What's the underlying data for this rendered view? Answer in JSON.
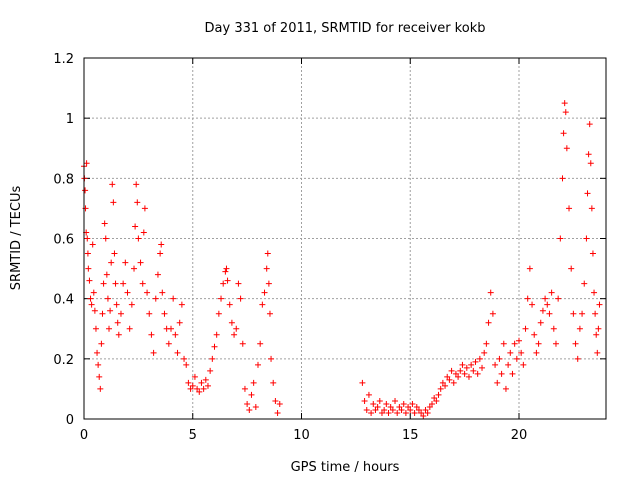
{
  "chart_data": {
    "type": "scatter",
    "title": "Day 331 of 2011, SRMTID for receiver kokb",
    "xlabel": "GPS time / hours",
    "ylabel": "SRMTID / TECUs",
    "xlim": [
      0,
      24
    ],
    "ylim": [
      0,
      1.2
    ],
    "x_ticks": [
      0,
      5,
      10,
      15,
      20
    ],
    "x_tick_labels": [
      "0",
      "5",
      "10",
      "15",
      "20"
    ],
    "y_ticks": [
      0,
      0.2,
      0.4,
      0.6,
      0.8,
      1.0,
      1.2
    ],
    "y_tick_labels": [
      "0",
      "0.2",
      "0.4",
      "0.6",
      "0.8",
      "1",
      "1.2"
    ],
    "grid": true,
    "marker": "+",
    "marker_color": "#ff0000",
    "series": [
      {
        "name": "SRMTID",
        "points": [
          [
            0.0,
            0.84
          ],
          [
            0.02,
            0.8
          ],
          [
            0.05,
            0.76
          ],
          [
            0.07,
            0.7
          ],
          [
            0.1,
            0.62
          ],
          [
            0.12,
            0.85
          ],
          [
            0.15,
            0.6
          ],
          [
            0.18,
            0.55
          ],
          [
            0.2,
            0.5
          ],
          [
            0.25,
            0.46
          ],
          [
            0.3,
            0.4
          ],
          [
            0.35,
            0.38
          ],
          [
            0.4,
            0.58
          ],
          [
            0.45,
            0.42
          ],
          [
            0.5,
            0.36
          ],
          [
            0.55,
            0.3
          ],
          [
            0.6,
            0.22
          ],
          [
            0.65,
            0.18
          ],
          [
            0.7,
            0.14
          ],
          [
            0.75,
            0.1
          ],
          [
            0.8,
            0.25
          ],
          [
            0.85,
            0.35
          ],
          [
            0.9,
            0.45
          ],
          [
            0.95,
            0.65
          ],
          [
            1.0,
            0.6
          ],
          [
            1.05,
            0.48
          ],
          [
            1.1,
            0.4
          ],
          [
            1.15,
            0.3
          ],
          [
            1.2,
            0.36
          ],
          [
            1.25,
            0.52
          ],
          [
            1.3,
            0.78
          ],
          [
            1.35,
            0.72
          ],
          [
            1.4,
            0.55
          ],
          [
            1.45,
            0.45
          ],
          [
            1.5,
            0.38
          ],
          [
            1.55,
            0.32
          ],
          [
            1.6,
            0.28
          ],
          [
            1.7,
            0.35
          ],
          [
            1.8,
            0.45
          ],
          [
            1.9,
            0.52
          ],
          [
            2.0,
            0.42
          ],
          [
            2.1,
            0.3
          ],
          [
            2.2,
            0.38
          ],
          [
            2.3,
            0.5
          ],
          [
            2.35,
            0.64
          ],
          [
            2.4,
            0.78
          ],
          [
            2.45,
            0.72
          ],
          [
            2.5,
            0.6
          ],
          [
            2.6,
            0.52
          ],
          [
            2.7,
            0.45
          ],
          [
            2.75,
            0.62
          ],
          [
            2.8,
            0.7
          ],
          [
            2.9,
            0.42
          ],
          [
            3.0,
            0.35
          ],
          [
            3.1,
            0.28
          ],
          [
            3.2,
            0.22
          ],
          [
            3.3,
            0.4
          ],
          [
            3.4,
            0.48
          ],
          [
            3.5,
            0.55
          ],
          [
            3.55,
            0.58
          ],
          [
            3.6,
            0.42
          ],
          [
            3.7,
            0.35
          ],
          [
            3.8,
            0.3
          ],
          [
            3.9,
            0.25
          ],
          [
            4.0,
            0.3
          ],
          [
            4.1,
            0.4
          ],
          [
            4.2,
            0.28
          ],
          [
            4.3,
            0.22
          ],
          [
            4.4,
            0.32
          ],
          [
            4.5,
            0.38
          ],
          [
            4.6,
            0.2
          ],
          [
            4.7,
            0.18
          ],
          [
            4.8,
            0.12
          ],
          [
            4.9,
            0.1
          ],
          [
            5.0,
            0.11
          ],
          [
            5.1,
            0.14
          ],
          [
            5.2,
            0.1
          ],
          [
            5.3,
            0.09
          ],
          [
            5.4,
            0.12
          ],
          [
            5.5,
            0.1
          ],
          [
            5.6,
            0.13
          ],
          [
            5.7,
            0.11
          ],
          [
            5.8,
            0.16
          ],
          [
            5.9,
            0.2
          ],
          [
            6.0,
            0.24
          ],
          [
            6.1,
            0.28
          ],
          [
            6.2,
            0.35
          ],
          [
            6.3,
            0.4
          ],
          [
            6.4,
            0.45
          ],
          [
            6.5,
            0.49
          ],
          [
            6.55,
            0.5
          ],
          [
            6.6,
            0.46
          ],
          [
            6.7,
            0.38
          ],
          [
            6.8,
            0.32
          ],
          [
            6.9,
            0.28
          ],
          [
            7.0,
            0.3
          ],
          [
            7.1,
            0.45
          ],
          [
            7.2,
            0.4
          ],
          [
            7.3,
            0.25
          ],
          [
            7.4,
            0.1
          ],
          [
            7.5,
            0.05
          ],
          [
            7.6,
            0.03
          ],
          [
            7.7,
            0.08
          ],
          [
            7.8,
            0.12
          ],
          [
            7.9,
            0.04
          ],
          [
            8.0,
            0.18
          ],
          [
            8.1,
            0.25
          ],
          [
            8.2,
            0.38
          ],
          [
            8.3,
            0.42
          ],
          [
            8.4,
            0.5
          ],
          [
            8.45,
            0.55
          ],
          [
            8.5,
            0.45
          ],
          [
            8.55,
            0.35
          ],
          [
            8.6,
            0.2
          ],
          [
            8.7,
            0.12
          ],
          [
            8.8,
            0.06
          ],
          [
            8.9,
            0.02
          ],
          [
            9.0,
            0.05
          ],
          [
            12.8,
            0.12
          ],
          [
            12.9,
            0.06
          ],
          [
            13.0,
            0.03
          ],
          [
            13.1,
            0.08
          ],
          [
            13.2,
            0.02
          ],
          [
            13.3,
            0.05
          ],
          [
            13.4,
            0.03
          ],
          [
            13.5,
            0.04
          ],
          [
            13.6,
            0.06
          ],
          [
            13.7,
            0.02
          ],
          [
            13.8,
            0.03
          ],
          [
            13.9,
            0.05
          ],
          [
            14.0,
            0.02
          ],
          [
            14.1,
            0.04
          ],
          [
            14.2,
            0.03
          ],
          [
            14.3,
            0.06
          ],
          [
            14.4,
            0.02
          ],
          [
            14.5,
            0.04
          ],
          [
            14.6,
            0.03
          ],
          [
            14.7,
            0.05
          ],
          [
            14.8,
            0.02
          ],
          [
            14.9,
            0.04
          ],
          [
            15.0,
            0.03
          ],
          [
            15.1,
            0.05
          ],
          [
            15.2,
            0.02
          ],
          [
            15.3,
            0.04
          ],
          [
            15.4,
            0.03
          ],
          [
            15.5,
            0.02
          ],
          [
            15.6,
            0.01
          ],
          [
            15.7,
            0.03
          ],
          [
            15.8,
            0.02
          ],
          [
            15.9,
            0.04
          ],
          [
            16.0,
            0.05
          ],
          [
            16.1,
            0.07
          ],
          [
            16.2,
            0.06
          ],
          [
            16.3,
            0.08
          ],
          [
            16.4,
            0.1
          ],
          [
            16.5,
            0.12
          ],
          [
            16.6,
            0.11
          ],
          [
            16.7,
            0.14
          ],
          [
            16.8,
            0.13
          ],
          [
            16.9,
            0.16
          ],
          [
            17.0,
            0.12
          ],
          [
            17.1,
            0.15
          ],
          [
            17.2,
            0.14
          ],
          [
            17.3,
            0.16
          ],
          [
            17.4,
            0.18
          ],
          [
            17.5,
            0.15
          ],
          [
            17.6,
            0.17
          ],
          [
            17.7,
            0.14
          ],
          [
            17.8,
            0.18
          ],
          [
            17.9,
            0.16
          ],
          [
            18.0,
            0.19
          ],
          [
            18.1,
            0.15
          ],
          [
            18.2,
            0.2
          ],
          [
            18.3,
            0.17
          ],
          [
            18.4,
            0.22
          ],
          [
            18.5,
            0.25
          ],
          [
            18.6,
            0.32
          ],
          [
            18.7,
            0.42
          ],
          [
            18.8,
            0.35
          ],
          [
            18.9,
            0.18
          ],
          [
            19.0,
            0.12
          ],
          [
            19.1,
            0.2
          ],
          [
            19.2,
            0.15
          ],
          [
            19.3,
            0.25
          ],
          [
            19.4,
            0.1
          ],
          [
            19.5,
            0.18
          ],
          [
            19.6,
            0.22
          ],
          [
            19.7,
            0.15
          ],
          [
            19.8,
            0.25
          ],
          [
            19.9,
            0.2
          ],
          [
            20.0,
            0.26
          ],
          [
            20.1,
            0.22
          ],
          [
            20.2,
            0.18
          ],
          [
            20.3,
            0.3
          ],
          [
            20.4,
            0.4
          ],
          [
            20.5,
            0.5
          ],
          [
            20.6,
            0.38
          ],
          [
            20.7,
            0.28
          ],
          [
            20.8,
            0.22
          ],
          [
            20.9,
            0.25
          ],
          [
            21.0,
            0.32
          ],
          [
            21.1,
            0.36
          ],
          [
            21.2,
            0.4
          ],
          [
            21.3,
            0.38
          ],
          [
            21.4,
            0.35
          ],
          [
            21.5,
            0.42
          ],
          [
            21.6,
            0.3
          ],
          [
            21.7,
            0.25
          ],
          [
            21.8,
            0.4
          ],
          [
            21.9,
            0.6
          ],
          [
            22.0,
            0.8
          ],
          [
            22.05,
            0.95
          ],
          [
            22.1,
            1.05
          ],
          [
            22.15,
            1.02
          ],
          [
            22.2,
            0.9
          ],
          [
            22.3,
            0.7
          ],
          [
            22.4,
            0.5
          ],
          [
            22.5,
            0.35
          ],
          [
            22.6,
            0.25
          ],
          [
            22.7,
            0.2
          ],
          [
            22.8,
            0.3
          ],
          [
            22.9,
            0.35
          ],
          [
            23.0,
            0.45
          ],
          [
            23.1,
            0.6
          ],
          [
            23.15,
            0.75
          ],
          [
            23.2,
            0.88
          ],
          [
            23.25,
            0.98
          ],
          [
            23.3,
            0.85
          ],
          [
            23.35,
            0.7
          ],
          [
            23.4,
            0.55
          ],
          [
            23.45,
            0.42
          ],
          [
            23.5,
            0.35
          ],
          [
            23.55,
            0.28
          ],
          [
            23.6,
            0.22
          ],
          [
            23.65,
            0.3
          ],
          [
            23.7,
            0.38
          ]
        ]
      }
    ]
  }
}
